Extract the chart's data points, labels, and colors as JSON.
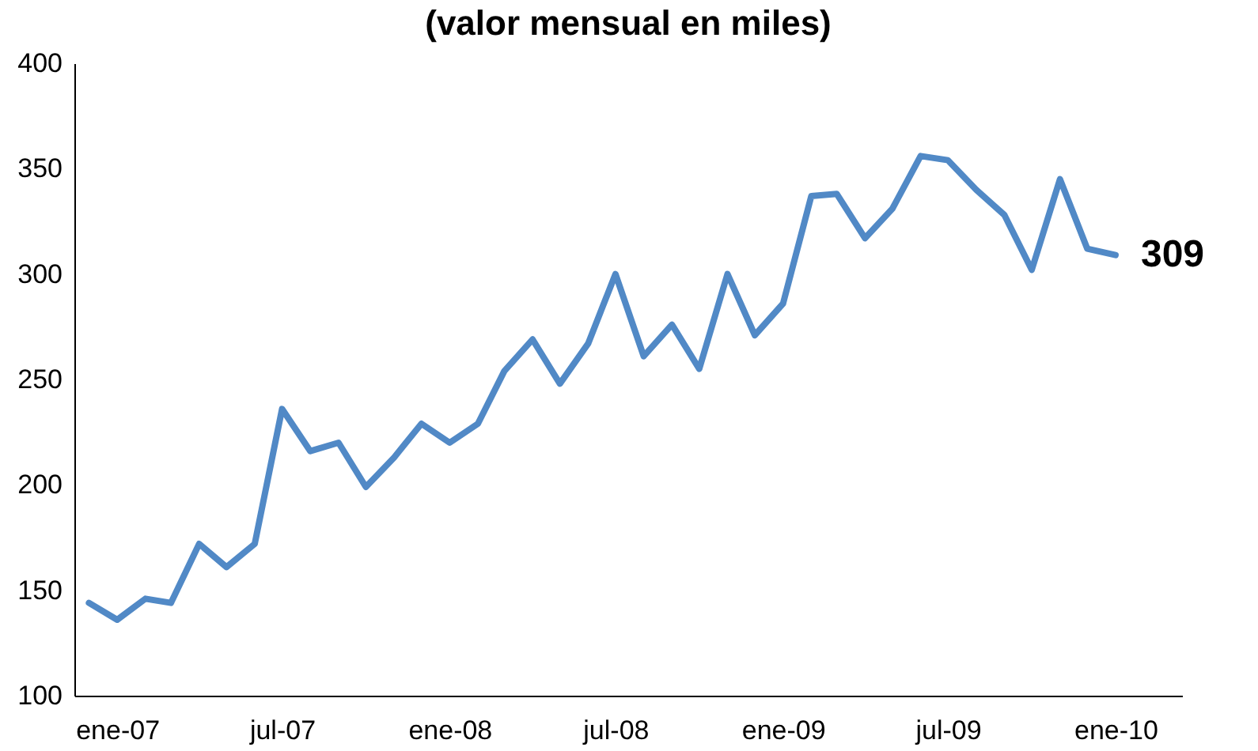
{
  "chart_data": {
    "type": "line",
    "title": "(valor mensual en miles)",
    "x": [
      "2006-12",
      "2007-01",
      "2007-02",
      "2007-03",
      "2007-04",
      "2007-05",
      "2007-06",
      "2007-07",
      "2007-08",
      "2007-09",
      "2007-10",
      "2007-11",
      "2007-12",
      "2008-01",
      "2008-02",
      "2008-03",
      "2008-04",
      "2008-05",
      "2008-06",
      "2008-07",
      "2008-08",
      "2008-09",
      "2008-10",
      "2008-11",
      "2008-12",
      "2009-01",
      "2009-02",
      "2009-03",
      "2009-04",
      "2009-05",
      "2009-06",
      "2009-07",
      "2009-08",
      "2009-09",
      "2009-10",
      "2009-11",
      "2009-12",
      "2010-01"
    ],
    "series": [
      {
        "color": "#5189c6",
        "values": [
          144,
          136,
          146,
          144,
          172,
          161,
          172,
          236,
          216,
          220,
          199,
          213,
          229,
          220,
          229,
          254,
          269,
          248,
          267,
          300,
          261,
          276,
          255,
          300,
          271,
          286,
          337,
          338,
          317,
          331,
          356,
          354,
          340,
          328,
          302,
          345,
          312,
          309
        ],
        "value_labels": [
          null,
          null,
          null,
          null,
          null,
          null,
          null,
          null,
          null,
          null,
          null,
          null,
          null,
          null,
          null,
          null,
          null,
          null,
          null,
          null,
          null,
          null,
          null,
          null,
          null,
          null,
          null,
          null,
          null,
          null,
          null,
          null,
          null,
          null,
          null,
          null,
          null,
          "309"
        ]
      }
    ],
    "xlim": [
      "2006-11-15",
      "2010-03-15"
    ],
    "xticks": [
      {
        "value": "2007-01",
        "label": "ene-07"
      },
      {
        "value": "2007-07",
        "label": "jul-07"
      },
      {
        "value": "2008-01",
        "label": "ene-08"
      },
      {
        "value": "2008-07",
        "label": "jul-08"
      },
      {
        "value": "2009-01",
        "label": "ene-09"
      },
      {
        "value": "2009-07",
        "label": "jul-09"
      },
      {
        "value": "2010-01",
        "label": "ene-10"
      }
    ],
    "ylim": [
      100,
      400
    ],
    "yticks": [
      100,
      150,
      200,
      250,
      300,
      350,
      400
    ],
    "grid": false,
    "marker": "none",
    "line_style": "solid"
  }
}
